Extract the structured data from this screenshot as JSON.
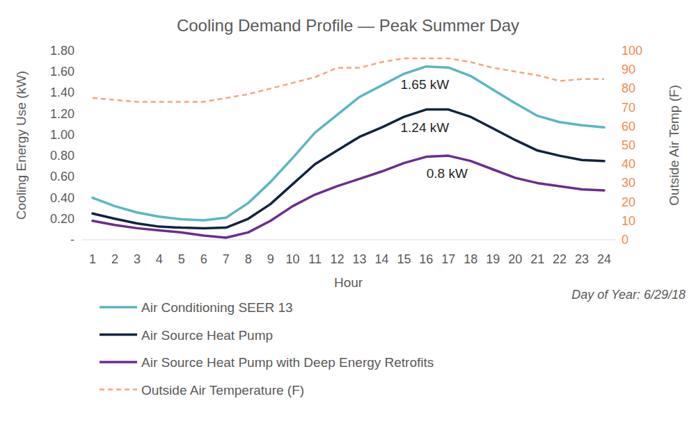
{
  "chart_data": {
    "type": "line",
    "title": "Cooling Demand Profile — Peak Summer Day",
    "x_label": "Hour",
    "y_label": "Cooling Energy Use (kW)",
    "y2_label": "Outside Air Temp (F)",
    "x": [
      1,
      2,
      3,
      4,
      5,
      6,
      7,
      8,
      9,
      10,
      11,
      12,
      13,
      14,
      15,
      16,
      17,
      18,
      19,
      20,
      21,
      22,
      23,
      24
    ],
    "xlim": [
      0.5,
      24.5
    ],
    "xticks": [
      1,
      2,
      3,
      4,
      5,
      6,
      7,
      8,
      9,
      10,
      11,
      12,
      13,
      14,
      15,
      16,
      17,
      18,
      19,
      20,
      21,
      22,
      23,
      24
    ],
    "ylim": [
      0,
      1.8
    ],
    "yticks": [
      {
        "value": 0,
        "label": "-"
      },
      {
        "value": 0.2,
        "label": "0.20"
      },
      {
        "value": 0.4,
        "label": "0.40"
      },
      {
        "value": 0.6,
        "label": "0.60"
      },
      {
        "value": 0.8,
        "label": "0.80"
      },
      {
        "value": 1.0,
        "label": "1.00"
      },
      {
        "value": 1.2,
        "label": "1.20"
      },
      {
        "value": 1.4,
        "label": "1.40"
      },
      {
        "value": 1.6,
        "label": "1.60"
      },
      {
        "value": 1.8,
        "label": "1.80"
      }
    ],
    "y2lim": [
      0,
      100
    ],
    "y2ticks": [
      0,
      10,
      20,
      30,
      40,
      50,
      60,
      70,
      80,
      90,
      100
    ],
    "grid": false,
    "legend": "bottom-left",
    "series": [
      {
        "name": "Air Conditioning SEER 13",
        "color": "#5bb6c2",
        "line_style": "solid",
        "values": [
          0.4,
          0.32,
          0.26,
          0.22,
          0.195,
          0.185,
          0.21,
          0.35,
          0.55,
          0.78,
          1.02,
          1.19,
          1.36,
          1.47,
          1.58,
          1.65,
          1.64,
          1.56,
          1.43,
          1.3,
          1.18,
          1.12,
          1.09,
          1.07
        ]
      },
      {
        "name": "Air Source Heat Pump",
        "color": "#10243f",
        "line_style": "solid",
        "values": [
          0.25,
          0.2,
          0.155,
          0.125,
          0.115,
          0.11,
          0.115,
          0.2,
          0.34,
          0.53,
          0.72,
          0.85,
          0.98,
          1.07,
          1.17,
          1.24,
          1.24,
          1.17,
          1.06,
          0.95,
          0.85,
          0.8,
          0.76,
          0.75
        ]
      },
      {
        "name": "Air Source Heat Pump with Deep Energy Retrofits",
        "color": "#6b2d90",
        "line_style": "solid",
        "values": [
          0.18,
          0.14,
          0.11,
          0.09,
          0.07,
          0.04,
          0.02,
          0.07,
          0.18,
          0.32,
          0.43,
          0.51,
          0.58,
          0.65,
          0.73,
          0.79,
          0.8,
          0.75,
          0.67,
          0.59,
          0.54,
          0.51,
          0.48,
          0.47
        ]
      },
      {
        "name": "Outside Air Temperature (F)",
        "color": "#f6a37e",
        "line_style": "dashed",
        "axis": "y2",
        "values": [
          75,
          74,
          73,
          73,
          73,
          73,
          75,
          77,
          80,
          83,
          86,
          91,
          91,
          94,
          96,
          96,
          96,
          94,
          91,
          89,
          87,
          84,
          85,
          85
        ]
      }
    ],
    "annotations": [
      "1.65 kW",
      "1.24 kW",
      "0.8 kW",
      "Day of Year: 6/29/18"
    ]
  }
}
